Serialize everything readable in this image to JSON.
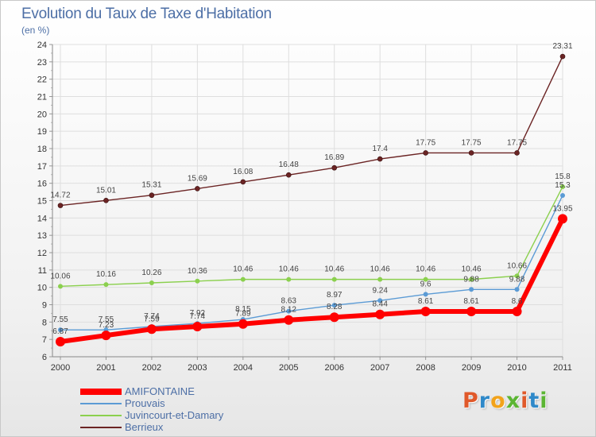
{
  "header": {
    "title": "Evolution du Taux de Taxe d'Habitation",
    "subtitle": "(en %)"
  },
  "logo": {
    "text": "Proxiti",
    "letter_colors": [
      "#e0592a",
      "#2f89c9",
      "#f2a31b",
      "#5bb533",
      "#e0592a",
      "#2f89c9",
      "#5bb533"
    ]
  },
  "chart_data": {
    "type": "line",
    "title": "Evolution du Taux de Taxe d'Habitation",
    "subtitle": "(en %)",
    "xlabel": "",
    "ylabel": "",
    "ylim": [
      6,
      24
    ],
    "y_ticks": [
      6,
      7,
      8,
      9,
      10,
      11,
      12,
      13,
      14,
      15,
      16,
      17,
      18,
      19,
      20,
      21,
      22,
      23,
      24
    ],
    "x": [
      "2000",
      "2001",
      "2002",
      "2003",
      "2004",
      "2005",
      "2006",
      "2007",
      "2008",
      "2009",
      "2010",
      "2011"
    ],
    "grid": true,
    "legend_position": "bottom-left",
    "series": [
      {
        "name": "AMIFONTAINE",
        "color": "#ff0000",
        "values": [
          6.87,
          7.23,
          7.59,
          7.74,
          7.89,
          8.12,
          8.28,
          8.44,
          8.61,
          8.61,
          8.61,
          13.95
        ],
        "labels": [
          "6.87",
          "7.23",
          "7.59",
          "7.74",
          "7.89",
          "8.12",
          "8.28",
          "8.44",
          "8.61",
          "8.61",
          "8.6",
          "13.95"
        ]
      },
      {
        "name": "Prouvais",
        "color": "#5b9bd5",
        "values": [
          7.55,
          7.55,
          7.74,
          7.92,
          8.15,
          8.63,
          8.97,
          9.24,
          9.6,
          9.88,
          9.88,
          15.3
        ],
        "labels": [
          "7.55",
          "7.55",
          "7.74",
          "7.92",
          "8.15",
          "8.63",
          "8.97",
          "9.24",
          "9.6",
          "9.88",
          "9.88",
          "15.3"
        ]
      },
      {
        "name": "Juvincourt-et-Damary",
        "color": "#8bd04e",
        "values": [
          10.06,
          10.16,
          10.26,
          10.36,
          10.46,
          10.46,
          10.46,
          10.46,
          10.46,
          10.46,
          10.66,
          15.8
        ],
        "labels": [
          "10.06",
          "10.16",
          "10.26",
          "10.36",
          "10.46",
          "10.46",
          "10.46",
          "10.46",
          "10.46",
          "10.46",
          "10.66",
          "15.8"
        ]
      },
      {
        "name": "Berrieux",
        "color": "#6b2424",
        "values": [
          14.72,
          15.01,
          15.31,
          15.69,
          16.08,
          16.48,
          16.89,
          17.4,
          17.75,
          17.75,
          17.75,
          23.31
        ],
        "labels": [
          "14.72",
          "15.01",
          "15.31",
          "15.69",
          "16.08",
          "16.48",
          "16.89",
          "17.4",
          "17.75",
          "17.75",
          "17.75",
          "23.31"
        ]
      }
    ]
  }
}
